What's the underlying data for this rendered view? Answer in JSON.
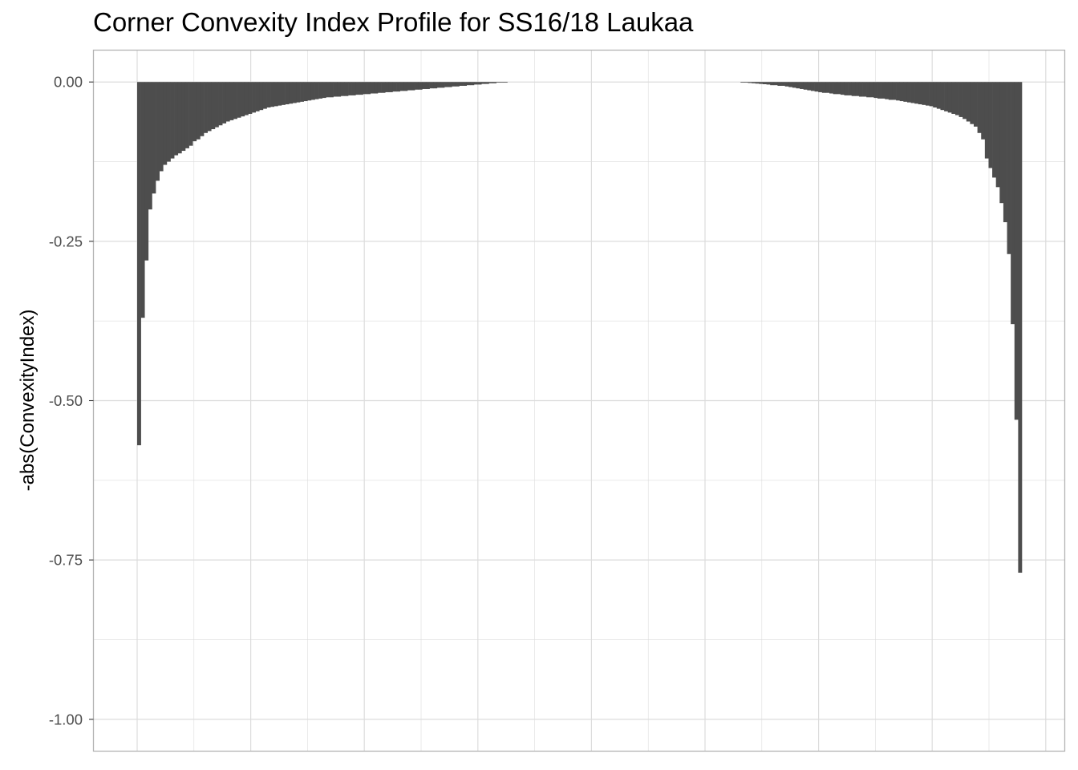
{
  "chart_data": {
    "type": "bar",
    "title": "Corner Convexity Index Profile for SS16/18 Laukaa",
    "xlabel": "",
    "ylabel": "-abs(ConvexityIndex)",
    "ylim": [
      -1.05,
      0.05
    ],
    "yticks": [
      0.0,
      -0.25,
      -0.5,
      -0.75,
      -1.0
    ],
    "ytick_labels": [
      "0.00",
      "-0.25",
      "-0.50",
      "-0.75",
      "-1.00"
    ],
    "grid": true,
    "bar_color": "#4d4d4d",
    "series": [
      {
        "values": [
          -0.57,
          -0.37,
          -0.28,
          -0.2,
          -0.175,
          -0.155,
          -0.14,
          -0.13,
          -0.125,
          -0.12,
          -0.115,
          -0.112,
          -0.108,
          -0.104,
          -0.1,
          -0.093,
          -0.09,
          -0.085,
          -0.08,
          -0.077,
          -0.074,
          -0.071,
          -0.068,
          -0.065,
          -0.062,
          -0.06,
          -0.058,
          -0.056,
          -0.054,
          -0.052,
          -0.05,
          -0.048,
          -0.046,
          -0.044,
          -0.042,
          -0.04,
          -0.039,
          -0.038,
          -0.037,
          -0.036,
          -0.035,
          -0.034,
          -0.033,
          -0.032,
          -0.031,
          -0.03,
          -0.029,
          -0.028,
          -0.027,
          -0.026,
          -0.025,
          -0.024,
          -0.024,
          -0.023,
          -0.023,
          -0.022,
          -0.022,
          -0.021,
          -0.021,
          -0.02,
          -0.02,
          -0.019,
          -0.019,
          -0.018,
          -0.018,
          -0.017,
          -0.017,
          -0.016,
          -0.016,
          -0.015,
          -0.015,
          -0.014,
          -0.014,
          -0.013,
          -0.013,
          -0.012,
          -0.012,
          -0.011,
          -0.011,
          -0.01,
          -0.01,
          -0.009,
          -0.009,
          -0.008,
          -0.008,
          -0.007,
          -0.007,
          -0.006,
          -0.006,
          -0.005,
          -0.005,
          -0.004,
          -0.004,
          -0.003,
          -0.003,
          -0.002,
          -0.002,
          -0.001,
          -0.001,
          -0.0005,
          0,
          0,
          0,
          0,
          0,
          0,
          0,
          0,
          0,
          0,
          0,
          0,
          0,
          0,
          0,
          0,
          0,
          0,
          0,
          0,
          0,
          0,
          0,
          0,
          0,
          0,
          0,
          0,
          0,
          0,
          0,
          0,
          0,
          0,
          0,
          0,
          0,
          0,
          0,
          0,
          0,
          0,
          0,
          0,
          0,
          0,
          0,
          0,
          0,
          0,
          0,
          0,
          0,
          0,
          0,
          0,
          0,
          0,
          0,
          0,
          0,
          0,
          0,
          -0.0005,
          -0.001,
          -0.0015,
          -0.002,
          -0.0025,
          -0.003,
          -0.0035,
          -0.004,
          -0.005,
          -0.005,
          -0.006,
          -0.006,
          -0.007,
          -0.008,
          -0.009,
          -0.01,
          -0.011,
          -0.012,
          -0.013,
          -0.014,
          -0.015,
          -0.016,
          -0.017,
          -0.017,
          -0.018,
          -0.019,
          -0.019,
          -0.02,
          -0.021,
          -0.021,
          -0.022,
          -0.022,
          -0.023,
          -0.023,
          -0.024,
          -0.024,
          -0.025,
          -0.026,
          -0.026,
          -0.027,
          -0.028,
          -0.028,
          -0.029,
          -0.03,
          -0.031,
          -0.032,
          -0.033,
          -0.034,
          -0.035,
          -0.036,
          -0.037,
          -0.038,
          -0.04,
          -0.042,
          -0.044,
          -0.046,
          -0.048,
          -0.05,
          -0.052,
          -0.055,
          -0.058,
          -0.062,
          -0.066,
          -0.07,
          -0.08,
          -0.09,
          -0.12,
          -0.135,
          -0.15,
          -0.165,
          -0.19,
          -0.22,
          -0.27,
          -0.38,
          -0.53,
          -0.77
        ]
      }
    ]
  }
}
